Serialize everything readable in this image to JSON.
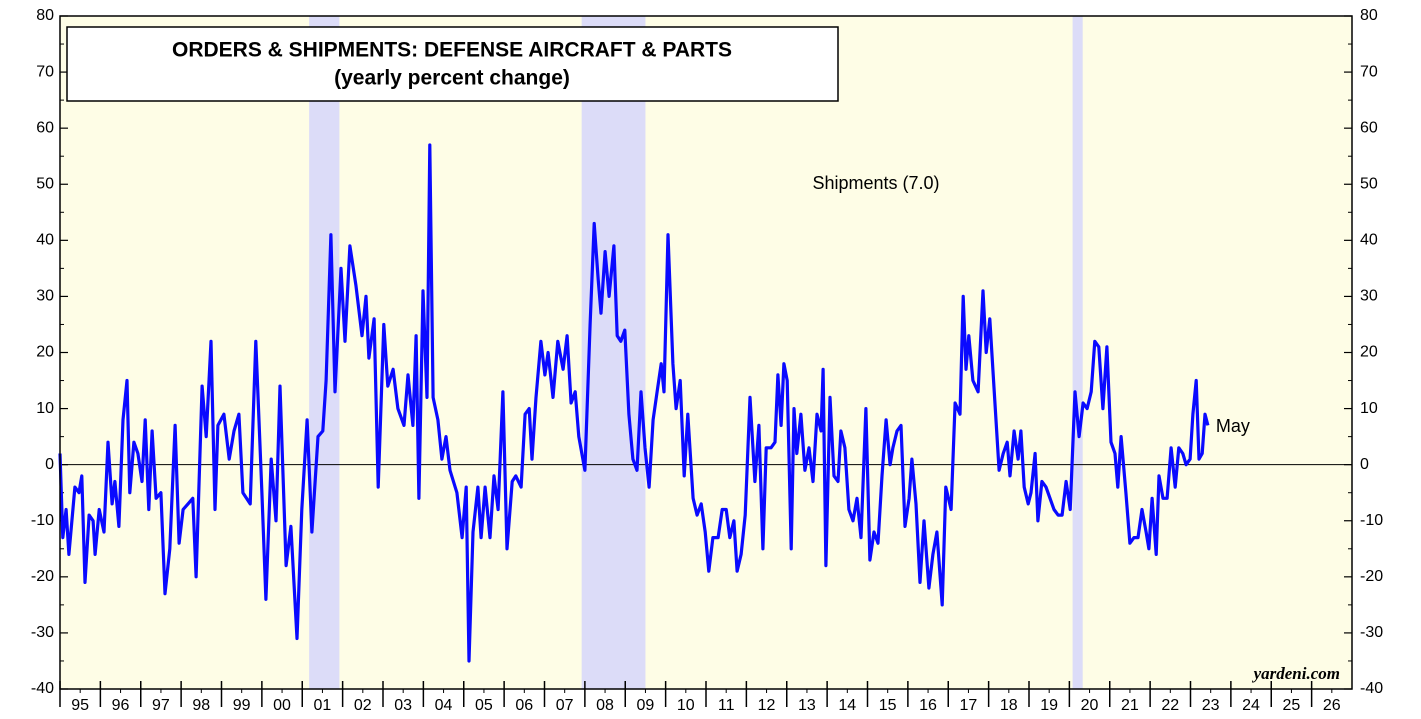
{
  "chart_data": {
    "type": "line",
    "title": "ORDERS & SHIPMENTS: DEFENSE AIRCRAFT & PARTS",
    "subtitle": "(yearly percent change)",
    "source": "yardeni.com",
    "end_label": "May",
    "xlim": [
      1995,
      2027
    ],
    "xticks": [
      {
        "value": 1995.5,
        "label": "95"
      },
      {
        "value": 1996.5,
        "label": "96"
      },
      {
        "value": 1997.5,
        "label": "97"
      },
      {
        "value": 1998.5,
        "label": "98"
      },
      {
        "value": 1999.5,
        "label": "99"
      },
      {
        "value": 2000.5,
        "label": "00"
      },
      {
        "value": 2001.5,
        "label": "01"
      },
      {
        "value": 2002.5,
        "label": "02"
      },
      {
        "value": 2003.5,
        "label": "03"
      },
      {
        "value": 2004.5,
        "label": "04"
      },
      {
        "value": 2005.5,
        "label": "05"
      },
      {
        "value": 2006.5,
        "label": "06"
      },
      {
        "value": 2007.5,
        "label": "07"
      },
      {
        "value": 2008.5,
        "label": "08"
      },
      {
        "value": 2009.5,
        "label": "09"
      },
      {
        "value": 2010.5,
        "label": "10"
      },
      {
        "value": 2011.5,
        "label": "11"
      },
      {
        "value": 2012.5,
        "label": "12"
      },
      {
        "value": 2013.5,
        "label": "13"
      },
      {
        "value": 2014.5,
        "label": "14"
      },
      {
        "value": 2015.5,
        "label": "15"
      },
      {
        "value": 2016.5,
        "label": "16"
      },
      {
        "value": 2017.5,
        "label": "17"
      },
      {
        "value": 2018.5,
        "label": "18"
      },
      {
        "value": 2019.5,
        "label": "19"
      },
      {
        "value": 2020.5,
        "label": "20"
      },
      {
        "value": 2021.5,
        "label": "21"
      },
      {
        "value": 2022.5,
        "label": "22"
      },
      {
        "value": 2023.5,
        "label": "23"
      },
      {
        "value": 2024.5,
        "label": "24"
      },
      {
        "value": 2025.5,
        "label": "25"
      },
      {
        "value": 2026.5,
        "label": "26"
      }
    ],
    "ylim": [
      -40,
      80
    ],
    "yticks": [
      -40,
      -30,
      -20,
      -10,
      0,
      10,
      20,
      30,
      40,
      50,
      60,
      70,
      80
    ],
    "y2lim": [
      -40,
      80
    ],
    "y2ticks": [
      -40,
      -30,
      -20,
      -10,
      0,
      10,
      20,
      30,
      40,
      50,
      60,
      70,
      80
    ],
    "recessions": [
      [
        2001.17,
        2001.92
      ],
      [
        2007.92,
        2009.5
      ],
      [
        2020.08,
        2020.33
      ]
    ],
    "recession_color": "#dcdcf8",
    "background": "#fefde6",
    "series": [
      {
        "name": "Shipments (7.0)",
        "color": "#0a0aff",
        "x": [
          1995.0,
          1995.07,
          1995.15,
          1995.22,
          1995.37,
          1995.47,
          1995.54,
          1995.62,
          1995.72,
          1995.82,
          1995.87,
          1995.97,
          1996.09,
          1996.19,
          1996.29,
          1996.36,
          1996.46,
          1996.56,
          1996.66,
          1996.73,
          1996.83,
          1996.93,
          1997.03,
          1997.11,
          1997.2,
          1997.28,
          1997.38,
          1997.5,
          1997.6,
          1997.72,
          1997.85,
          1997.95,
          1998.05,
          1998.17,
          1998.29,
          1998.37,
          1998.52,
          1998.62,
          1998.74,
          1998.84,
          1998.91,
          1999.06,
          1999.19,
          1999.31,
          1999.43,
          1999.53,
          1999.71,
          1999.85,
          2000.0,
          2000.1,
          2000.23,
          2000.35,
          2000.45,
          2000.6,
          2000.72,
          2000.87,
          2000.99,
          2001.12,
          2001.24,
          2001.39,
          2001.51,
          2001.59,
          2001.71,
          2001.81,
          2001.96,
          2002.06,
          2002.18,
          2002.33,
          2002.48,
          2002.58,
          2002.65,
          2002.78,
          2002.88,
          2003.02,
          2003.12,
          2003.25,
          2003.37,
          2003.52,
          2003.62,
          2003.74,
          2003.82,
          2003.89,
          2003.99,
          2004.09,
          2004.16,
          2004.24,
          2004.36,
          2004.46,
          2004.56,
          2004.66,
          2004.83,
          2004.96,
          2005.06,
          2005.13,
          2005.23,
          2005.35,
          2005.43,
          2005.53,
          2005.65,
          2005.75,
          2005.85,
          2005.97,
          2006.07,
          2006.2,
          2006.29,
          2006.42,
          2006.52,
          2006.62,
          2006.69,
          2006.79,
          2006.91,
          2007.01,
          2007.09,
          2007.21,
          2007.33,
          2007.46,
          2007.56,
          2007.66,
          2007.76,
          2007.85,
          2008.0,
          2008.13,
          2008.23,
          2008.33,
          2008.4,
          2008.5,
          2008.6,
          2008.72,
          2008.8,
          2008.89,
          2008.99,
          2009.09,
          2009.19,
          2009.29,
          2009.39,
          2009.49,
          2009.59,
          2009.69,
          2009.79,
          2009.89,
          2009.96,
          2010.06,
          2010.18,
          2010.26,
          2010.36,
          2010.46,
          2010.55,
          2010.68,
          2010.78,
          2010.88,
          2010.98,
          2011.07,
          2011.17,
          2011.3,
          2011.4,
          2011.5,
          2011.59,
          2011.69,
          2011.77,
          2011.87,
          2011.97,
          2012.09,
          2012.21,
          2012.31,
          2012.41,
          2012.49,
          2012.61,
          2012.71,
          2012.78,
          2012.86,
          2012.93,
          2013.01,
          2013.11,
          2013.18,
          2013.25,
          2013.35,
          2013.45,
          2013.55,
          2013.65,
          2013.75,
          2013.85,
          2013.9,
          2013.97,
          2014.07,
          2014.17,
          2014.27,
          2014.34,
          2014.44,
          2014.54,
          2014.64,
          2014.74,
          2014.84,
          2014.96,
          2015.06,
          2015.16,
          2015.26,
          2015.36,
          2015.46,
          2015.56,
          2015.63,
          2015.73,
          2015.83,
          2015.93,
          2016.03,
          2016.1,
          2016.2,
          2016.3,
          2016.4,
          2016.52,
          2016.62,
          2016.72,
          2016.85,
          2016.94,
          2017.07,
          2017.17,
          2017.29,
          2017.37,
          2017.44,
          2017.51,
          2017.61,
          2017.74,
          2017.86,
          2017.94,
          2018.03,
          2018.13,
          2018.26,
          2018.36,
          2018.46,
          2018.53,
          2018.63,
          2018.73,
          2018.8,
          2018.88,
          2018.98,
          2019.05,
          2019.15,
          2019.22,
          2019.32,
          2019.42,
          2019.52,
          2019.62,
          2019.72,
          2019.82,
          2019.92,
          2020.02,
          2020.14,
          2020.24,
          2020.34,
          2020.44,
          2020.54,
          2020.63,
          2020.73,
          2020.83,
          2020.93,
          2021.03,
          2021.13,
          2021.2,
          2021.28,
          2021.4,
          2021.5,
          2021.6,
          2021.7,
          2021.8,
          2021.9,
          2021.97,
          2022.05,
          2022.15,
          2022.22,
          2022.32,
          2022.42,
          2022.52,
          2022.62,
          2022.71,
          2022.81,
          2022.89,
          2022.99,
          2023.06,
          2023.14,
          2023.21,
          2023.29,
          2023.36,
          2023.43
        ],
        "values": [
          2,
          -13,
          -8,
          -16,
          -4,
          -5,
          -2,
          -21,
          -9,
          -10,
          -16,
          -8,
          -12,
          4,
          -7,
          -3,
          -11,
          8,
          15,
          -5,
          4,
          2,
          -3,
          8,
          -8,
          6,
          -6,
          -5,
          -23,
          -15,
          7,
          -14,
          -8,
          -7,
          -6,
          -20,
          14,
          5,
          22,
          -8,
          7,
          9,
          1,
          6,
          9,
          -5,
          -7,
          22,
          -5,
          -24,
          1,
          -10,
          14,
          -18,
          -11,
          -31,
          -8,
          8,
          -12,
          5,
          6,
          15,
          41,
          13,
          35,
          22,
          39,
          32,
          23,
          30,
          19,
          26,
          -4,
          25,
          14,
          17,
          10,
          7,
          16,
          7,
          23,
          -6,
          31,
          12,
          57,
          12,
          8,
          1,
          5,
          -1,
          -5,
          -13,
          -4,
          -35,
          -12,
          -4,
          -13,
          -4,
          -13,
          -2,
          -8,
          13,
          -15,
          -3,
          -2,
          -4,
          9,
          10,
          1,
          12,
          22,
          16,
          20,
          12,
          22,
          17,
          23,
          11,
          13,
          5,
          -1,
          25,
          43,
          33,
          27,
          38,
          30,
          39,
          23,
          22,
          24,
          9,
          1,
          -1,
          13,
          3,
          -4,
          8,
          13,
          18,
          13,
          41,
          18,
          10,
          15,
          -2,
          9,
          -6,
          -9,
          -7,
          -12,
          -19,
          -13,
          -13,
          -8,
          -8,
          -13,
          -10,
          -19,
          -16,
          -9,
          12,
          -3,
          7,
          -15,
          3,
          3,
          4,
          16,
          7,
          18,
          15,
          -15,
          10,
          2,
          9,
          -1,
          3,
          -3,
          9,
          6,
          17,
          -18,
          12,
          -2,
          -3,
          6,
          3,
          -8,
          -10,
          -6,
          -13,
          10,
          -17,
          -12,
          -14,
          -2,
          8,
          0,
          3,
          6,
          7,
          -11,
          -6,
          1,
          -7,
          -21,
          -10,
          -22,
          -16,
          -12,
          -25,
          -4,
          -8,
          11,
          9,
          30,
          17,
          23,
          15,
          13,
          31,
          20,
          26,
          14,
          -1,
          2,
          4,
          -2,
          6,
          1,
          6,
          -4,
          -7,
          -5,
          2,
          -10,
          -3,
          -4,
          -6,
          -8,
          -9,
          -9,
          -3,
          -8,
          13,
          5,
          11,
          10,
          13,
          22,
          21,
          10,
          21,
          4,
          2,
          -4,
          5,
          -5,
          -14,
          -13,
          -13,
          -8,
          -12,
          -15,
          -6,
          -16,
          -2,
          -6,
          -6,
          3,
          -4,
          3,
          2,
          0,
          1,
          9,
          15,
          1,
          2,
          9,
          7
        ]
      }
    ]
  }
}
